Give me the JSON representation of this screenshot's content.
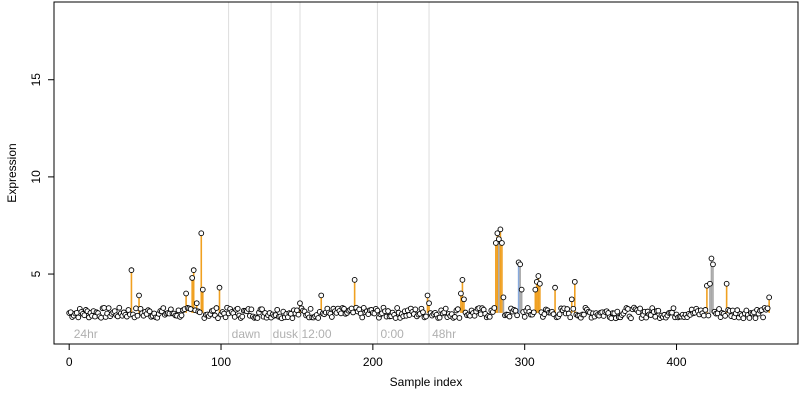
{
  "chart_data": {
    "type": "scatter",
    "xlabel": "Sample index",
    "ylabel": "Expression",
    "xlim": [
      -10,
      480
    ],
    "ylim": [
      1.4,
      19.0
    ],
    "x_ticks": [
      0,
      100,
      200,
      300,
      400
    ],
    "y_ticks": [
      5,
      10,
      15
    ],
    "baseline": 3.0,
    "grid": false,
    "region_lines": [
      105,
      133,
      152,
      203,
      237
    ],
    "region_labels": [
      {
        "x": 3,
        "label": "24hr"
      },
      {
        "x": 107,
        "label": "dawn"
      },
      {
        "x": 134,
        "label": "dusk"
      },
      {
        "x": 153,
        "label": "12:00"
      },
      {
        "x": 205,
        "label": "0:00"
      },
      {
        "x": 239,
        "label": "48hr"
      }
    ],
    "colors": {
      "point_fill": "#ffffff",
      "point_stroke": "#000000",
      "spike_orange": "#f0a020",
      "spike_gray": "#a8a8a8",
      "spike_blue": "#88aadd",
      "region_line": "#dddddd"
    },
    "spikes": [
      {
        "x": 41,
        "y": 5.2,
        "color": "orange"
      },
      {
        "x": 46,
        "y": 3.9,
        "color": "orange"
      },
      {
        "x": 77,
        "y": 4.0,
        "color": "orange"
      },
      {
        "x": 81,
        "y": 4.8,
        "color": "orange"
      },
      {
        "x": 82,
        "y": 5.2,
        "color": "orange"
      },
      {
        "x": 84,
        "y": 3.5,
        "color": "orange"
      },
      {
        "x": 87,
        "y": 7.1,
        "color": "orange"
      },
      {
        "x": 88,
        "y": 4.2,
        "color": "orange"
      },
      {
        "x": 99,
        "y": 4.3,
        "color": "orange"
      },
      {
        "x": 152,
        "y": 3.5,
        "color": "orange"
      },
      {
        "x": 166,
        "y": 3.9,
        "color": "orange"
      },
      {
        "x": 188,
        "y": 4.7,
        "color": "orange"
      },
      {
        "x": 236,
        "y": 3.9,
        "color": "orange"
      },
      {
        "x": 237,
        "y": 3.5,
        "color": "orange"
      },
      {
        "x": 258,
        "y": 4.0,
        "color": "orange"
      },
      {
        "x": 259,
        "y": 4.7,
        "color": "orange"
      },
      {
        "x": 260,
        "y": 3.7,
        "color": "orange"
      },
      {
        "x": 281,
        "y": 6.6,
        "color": "orange"
      },
      {
        "x": 282,
        "y": 7.1,
        "color": "orange"
      },
      {
        "x": 283,
        "y": 6.8,
        "color": "gray"
      },
      {
        "x": 284,
        "y": 7.3,
        "color": "orange"
      },
      {
        "x": 285,
        "y": 6.6,
        "color": "orange"
      },
      {
        "x": 286,
        "y": 3.8,
        "color": "gray"
      },
      {
        "x": 296,
        "y": 5.6,
        "color": "blue"
      },
      {
        "x": 297,
        "y": 5.5,
        "color": "gray"
      },
      {
        "x": 298,
        "y": 4.2,
        "color": "gray"
      },
      {
        "x": 307,
        "y": 4.2,
        "color": "orange"
      },
      {
        "x": 308,
        "y": 4.6,
        "color": "orange"
      },
      {
        "x": 309,
        "y": 4.9,
        "color": "orange"
      },
      {
        "x": 310,
        "y": 4.5,
        "color": "orange"
      },
      {
        "x": 320,
        "y": 4.3,
        "color": "orange"
      },
      {
        "x": 331,
        "y": 3.7,
        "color": "orange"
      },
      {
        "x": 333,
        "y": 4.6,
        "color": "orange"
      },
      {
        "x": 420,
        "y": 4.4,
        "color": "orange"
      },
      {
        "x": 422,
        "y": 4.5,
        "color": "gray"
      },
      {
        "x": 423,
        "y": 5.8,
        "color": "gray"
      },
      {
        "x": 424,
        "y": 5.5,
        "color": "gray"
      },
      {
        "x": 433,
        "y": 4.5,
        "color": "orange"
      },
      {
        "x": 461,
        "y": 3.8,
        "color": "orange"
      }
    ],
    "n_points": 462
  }
}
